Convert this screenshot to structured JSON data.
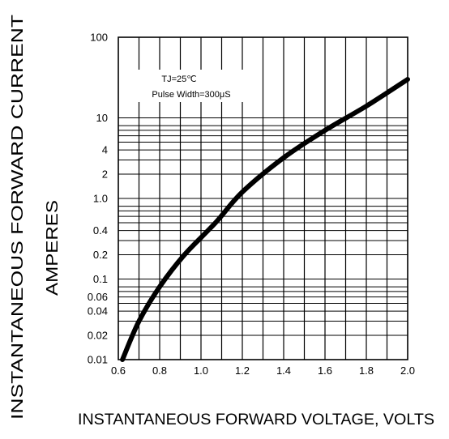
{
  "chart_data": {
    "type": "line",
    "title": "",
    "xlabel": "INSTANTANEOUS FORWARD VOLTAGE, VOLTS",
    "ylabel_line1": "INSTANTANEOUS FORWARD CURRENT",
    "ylabel_line2": "AMPERES",
    "xscale": "linear",
    "yscale": "log",
    "xlim": [
      0.6,
      2.0
    ],
    "ylim": [
      0.01,
      100
    ],
    "grid": true,
    "xticks": [
      0.6,
      0.8,
      1.0,
      1.2,
      1.4,
      1.6,
      1.8,
      2.0
    ],
    "xtick_labels": [
      "0.6",
      "0.8",
      "1.0",
      "1.2",
      "1.4",
      "1.6",
      "1.8",
      "2.0"
    ],
    "yticks": [
      100,
      10,
      4,
      2,
      1.0,
      0.4,
      0.2,
      0.1,
      0.06,
      0.04,
      0.02,
      0.01
    ],
    "ytick_labels": [
      "100",
      "10",
      "4",
      "2",
      "1.0",
      "0.4",
      "0.2",
      "0.1",
      "0.06",
      "0.04",
      "0.02",
      "0.01"
    ],
    "annotation": {
      "line1": "TJ=25℃",
      "line2": "Pulse Width=300μS"
    },
    "series": [
      {
        "x": [
          0.62,
          0.7,
          0.8,
          0.92,
          1.07,
          1.2,
          1.4,
          1.6,
          1.8,
          2.0
        ],
        "values": [
          0.01,
          0.03,
          0.08,
          0.2,
          0.5,
          1.2,
          3.2,
          7.0,
          14.0,
          30.0
        ]
      }
    ]
  }
}
